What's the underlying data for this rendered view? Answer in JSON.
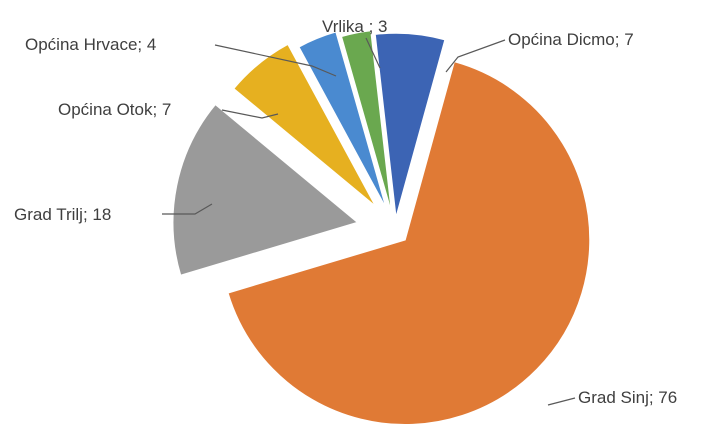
{
  "chart_data": {
    "type": "pie",
    "exploded": true,
    "legend": "none",
    "slices": [
      {
        "name": "Općina Dicmo",
        "value": 7,
        "label": "Općina Dicmo; 7",
        "color": "#3c64b4"
      },
      {
        "name": "Grad Sinj",
        "value": 76,
        "label": "Grad Sinj; 76",
        "color": "#e07a35"
      },
      {
        "name": "Grad Trilj",
        "value": 18,
        "label": "Grad Trilj; 18",
        "color": "#9a9a9a"
      },
      {
        "name": "Općina Otok",
        "value": 7,
        "label": "Općina Otok; 7",
        "color": "#e6b020"
      },
      {
        "name": "Općina Hrvace",
        "value": 4,
        "label": "Općina Hrvace; 4",
        "color": "#4a8ad0"
      },
      {
        "name": "Vrlika",
        "value": 3,
        "label": "Vrlika ; 3",
        "color": "#6aa84f"
      }
    ]
  }
}
